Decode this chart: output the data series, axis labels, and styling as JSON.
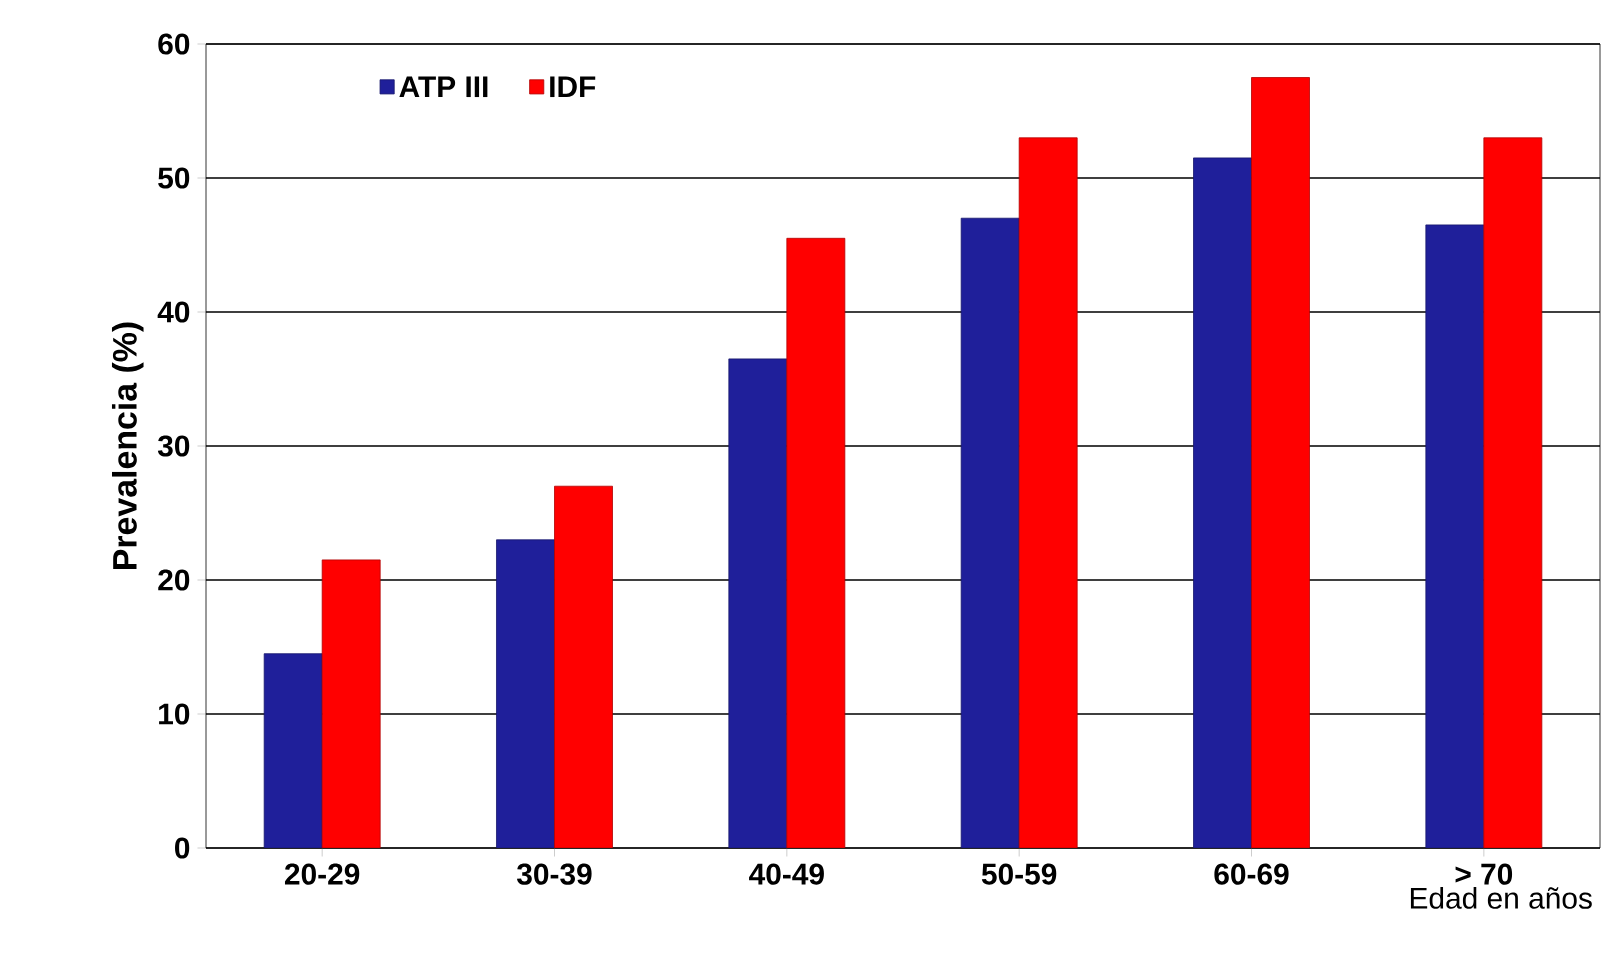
{
  "chart_data": {
    "type": "bar",
    "ylabel": "Prevalencia (%)",
    "xlabel": "Edad en años",
    "categories": [
      "20-29",
      "30-39",
      "40-49",
      "50-59",
      "60-69",
      "> 70"
    ],
    "series": [
      {
        "name": "ATP III",
        "color": "#1f1f9a",
        "values": [
          14.5,
          23,
          36.5,
          47,
          51.5,
          46.5
        ]
      },
      {
        "name": "IDF",
        "color": "#ff0000",
        "values": [
          21.5,
          27,
          45.5,
          53,
          57.5,
          53
        ]
      }
    ],
    "ylim": [
      0,
      60
    ],
    "yticks": [
      0,
      10,
      20,
      30,
      40,
      50,
      60
    ],
    "grid": "y",
    "legend": "top left"
  }
}
